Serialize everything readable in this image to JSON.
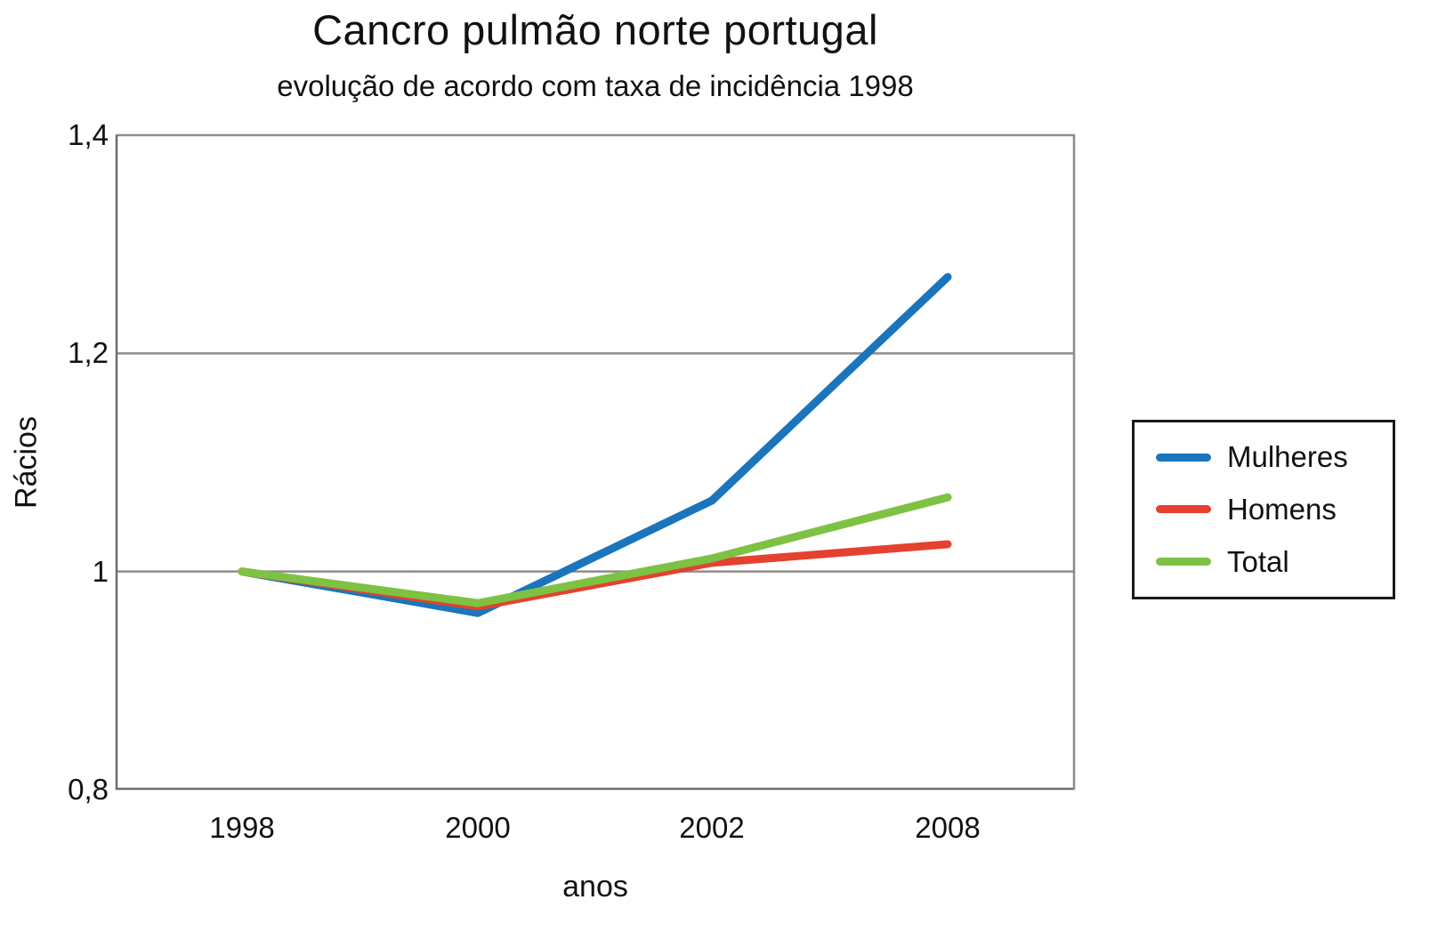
{
  "chart_data": {
    "type": "line",
    "title": "Cancro pulmão norte portugal",
    "subtitle": "evolução de acordo com taxa de incidência 1998",
    "xlabel": "anos",
    "ylabel": "Rácios",
    "categories": [
      "1998",
      "2000",
      "2002",
      "2008"
    ],
    "ylim": [
      0.8,
      1.4
    ],
    "ytick_labels": [
      "1,4",
      "1,2",
      "1",
      "0,8"
    ],
    "ytick_values": [
      1.4,
      1.2,
      1.0,
      0.8
    ],
    "gridline_values": [
      1.4,
      1.2,
      1.0
    ],
    "grid": "horizontal",
    "legend_position": "right",
    "colors": {
      "gridline": "#8c8c8c",
      "axis": "#6e6e6e"
    },
    "series": [
      {
        "name": "Mulheres",
        "color": "#1b75bc",
        "values": [
          1.0,
          0.962,
          1.065,
          1.27
        ]
      },
      {
        "name": "Homens",
        "color": "#e6402e",
        "values": [
          1.0,
          0.968,
          1.008,
          1.025
        ]
      },
      {
        "name": "Total",
        "color": "#7dc243",
        "values": [
          1.0,
          0.971,
          1.012,
          1.068
        ]
      }
    ]
  }
}
